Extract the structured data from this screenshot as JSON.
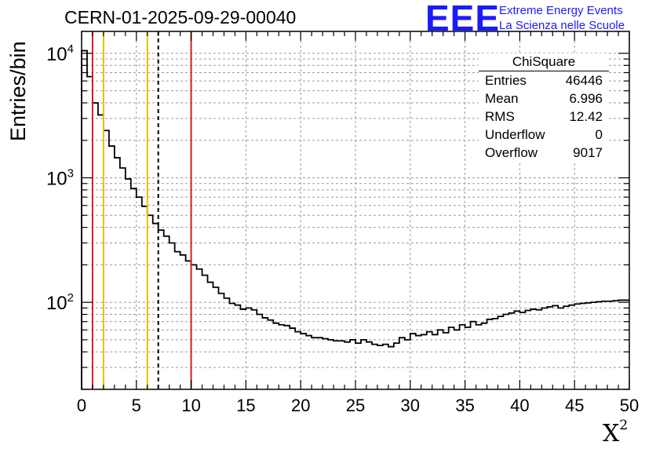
{
  "header": {
    "run_title": "CERN-01-2025-09-29-00040",
    "logo_mark": "EEE",
    "logo_line1": "Extreme Energy Events",
    "logo_line2": "La Scienza nelle Scuole",
    "logo_color": "#1a1aff"
  },
  "stats_box": {
    "title": "ChiSquare",
    "rows": [
      {
        "label": "Entries",
        "value": "46446"
      },
      {
        "label": "Mean",
        "value": "6.996"
      },
      {
        "label": "RMS",
        "value": "12.42"
      },
      {
        "label": "Underflow",
        "value": "0"
      },
      {
        "label": "Overflow",
        "value": "9017"
      }
    ]
  },
  "chart_data": {
    "type": "histogram",
    "title": "CERN-01-2025-09-29-00040",
    "xlabel": "X",
    "xlabel_superscript": "2",
    "ylabel": "Entries/bin",
    "xlim": [
      0,
      50
    ],
    "ylim": [
      20,
      15000
    ],
    "y_scale": "log",
    "grid": true,
    "bin_width": 0.5,
    "x_ticks": [
      "0",
      "5",
      "10",
      "15",
      "20",
      "25",
      "30",
      "35",
      "40",
      "45",
      "50"
    ],
    "y_ticks": [
      {
        "base": "10",
        "exp": "2",
        "value": 100
      },
      {
        "base": "10",
        "exp": "3",
        "value": 1000
      },
      {
        "base": "10",
        "exp": "4",
        "value": 10000
      }
    ],
    "values": [
      10500,
      6500,
      4000,
      3200,
      2400,
      1800,
      1450,
      1200,
      980,
      820,
      700,
      590,
      500,
      430,
      380,
      340,
      300,
      255,
      240,
      215,
      200,
      185,
      165,
      145,
      132,
      118,
      108,
      98,
      95,
      88,
      90,
      87,
      80,
      75,
      72,
      68,
      66,
      65,
      62,
      58,
      56,
      54,
      52,
      52,
      51,
      50,
      49,
      49,
      48,
      50,
      47,
      50,
      48,
      46,
      45,
      46,
      44,
      47,
      52,
      50,
      56,
      54,
      55,
      58,
      55,
      60,
      57,
      63,
      60,
      66,
      63,
      70,
      66,
      68,
      73,
      74,
      77,
      80,
      82,
      85,
      83,
      86,
      88,
      87,
      90,
      92,
      94,
      90,
      93,
      95,
      97,
      98,
      99,
      100,
      101,
      102,
      102,
      103,
      104,
      104
    ],
    "vertical_lines": [
      {
        "x": 1,
        "color": "#d62020",
        "style": "solid"
      },
      {
        "x": 2,
        "color": "#e8c000",
        "style": "solid"
      },
      {
        "x": 6,
        "color": "#e8c000",
        "style": "solid"
      },
      {
        "x": 7,
        "color": "#000000",
        "style": "dashed"
      },
      {
        "x": 10,
        "color": "#d62020",
        "style": "solid"
      }
    ]
  }
}
